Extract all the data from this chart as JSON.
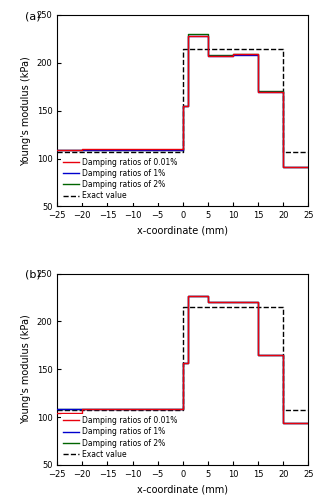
{
  "subplot_a": {
    "exact": {
      "x": [
        -25,
        0,
        0,
        20,
        20,
        25
      ],
      "y": [
        107,
        107,
        215,
        215,
        107,
        107
      ]
    },
    "red": {
      "x": [
        -25,
        -20,
        -20,
        0,
        0,
        1,
        1,
        5,
        5,
        10,
        10,
        15,
        15,
        20,
        20,
        25
      ],
      "y": [
        109,
        109,
        110,
        110,
        155,
        155,
        228,
        228,
        207,
        207,
        209,
        209,
        170,
        170,
        91,
        91
      ]
    },
    "blue": {
      "x": [
        -25,
        -20,
        -20,
        0,
        0,
        1,
        1,
        5,
        5,
        10,
        10,
        15,
        15,
        20,
        20,
        25
      ],
      "y": [
        109,
        109,
        109,
        109,
        155,
        155,
        228,
        228,
        207,
        207,
        208,
        208,
        170,
        170,
        91,
        91
      ]
    },
    "green": {
      "x": [
        -25,
        -20,
        -20,
        0,
        0,
        1,
        1,
        5,
        5,
        10,
        10,
        15,
        15,
        20,
        20,
        25
      ],
      "y": [
        109,
        109,
        109,
        109,
        155,
        155,
        230,
        230,
        208,
        208,
        209,
        209,
        171,
        171,
        91,
        91
      ]
    }
  },
  "subplot_b": {
    "exact": {
      "x": [
        -25,
        0,
        0,
        20,
        20,
        25
      ],
      "y": [
        107,
        107,
        215,
        215,
        107,
        107
      ]
    },
    "red": {
      "x": [
        -25,
        -20,
        -20,
        0,
        0,
        1,
        1,
        5,
        5,
        10,
        10,
        15,
        15,
        20,
        20,
        25
      ],
      "y": [
        104,
        104,
        109,
        109,
        157,
        157,
        226,
        226,
        220,
        220,
        220,
        220,
        165,
        165,
        94,
        94
      ]
    },
    "blue": {
      "x": [
        -25,
        -20,
        -20,
        0,
        0,
        1,
        1,
        5,
        5,
        10,
        10,
        15,
        15,
        20,
        20,
        25
      ],
      "y": [
        109,
        109,
        109,
        109,
        157,
        157,
        226,
        226,
        220,
        220,
        220,
        220,
        165,
        165,
        94,
        94
      ]
    },
    "green": {
      "x": [
        -25,
        -20,
        -20,
        0,
        0,
        1,
        1,
        5,
        5,
        10,
        10,
        15,
        15,
        20,
        20,
        25
      ],
      "y": [
        109,
        109,
        109,
        109,
        157,
        157,
        227,
        227,
        220,
        220,
        220,
        220,
        165,
        165,
        94,
        94
      ]
    }
  },
  "colors": {
    "red": "#e8000d",
    "blue": "#0000cd",
    "green": "#006400",
    "exact": "#000000"
  },
  "ylim": [
    50,
    250
  ],
  "xlim": [
    -25,
    25
  ],
  "yticks": [
    50,
    100,
    150,
    200,
    250
  ],
  "xticks": [
    -25,
    -20,
    -15,
    -10,
    -5,
    0,
    5,
    10,
    15,
    20,
    25
  ],
  "ylabel": "Young's modulus (kPa)",
  "xlabel": "x-coordinate (mm)",
  "legend_labels": [
    "Damping ratios of 0.01%",
    "Damping ratios of 1%",
    "Damping ratios of 2%",
    "Exact value"
  ],
  "label_a": "(a)",
  "label_b": "(b)"
}
